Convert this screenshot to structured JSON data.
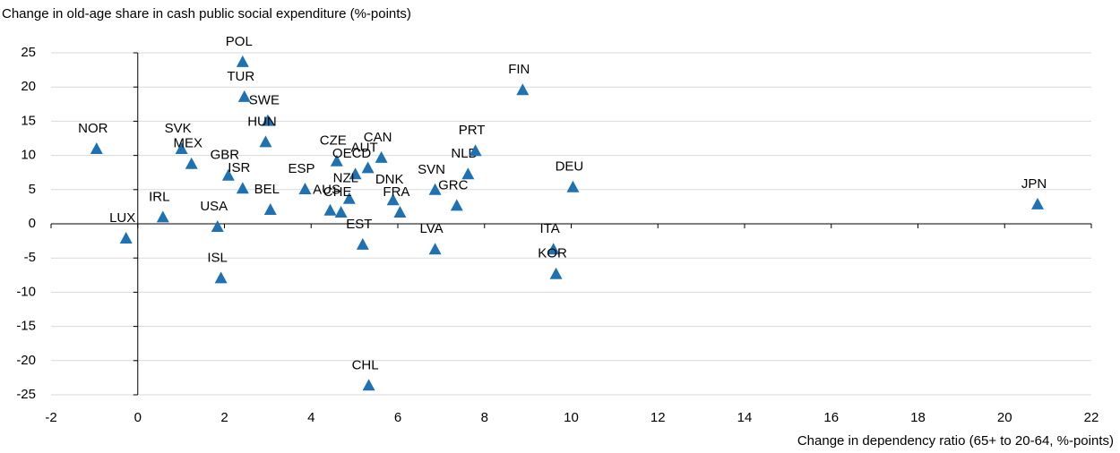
{
  "chart_data": {
    "type": "scatter",
    "title": "Change in old-age share in cash public social expenditure (%-points)",
    "x_label": "Change in dependency ratio (65+ to 20-64, %-points)",
    "labels": [
      "POL",
      "TUR",
      "SWE",
      "HUN",
      "FIN",
      "NOR",
      "SVK",
      "MEX",
      "GBR",
      "ISR",
      "BEL",
      "ESP",
      "CZE",
      "CAN",
      "AUT",
      "OECD",
      "NZL",
      "AUS",
      "CHE",
      "DNK",
      "FRA",
      "EST",
      "SVN",
      "GRC",
      "NLD",
      "PRT",
      "DEU",
      "JPN",
      "IRL",
      "LUX",
      "USA",
      "ISL",
      "LVA",
      "ITA",
      "KOR",
      "CHL"
    ],
    "x": [
      2.42,
      2.46,
      3.0,
      2.95,
      8.88,
      -0.95,
      1.01,
      1.24,
      2.09,
      2.42,
      3.06,
      3.86,
      4.59,
      5.62,
      5.31,
      5.02,
      4.88,
      4.44,
      4.69,
      5.89,
      6.05,
      5.19,
      6.86,
      7.36,
      7.62,
      7.79,
      10.04,
      20.76,
      0.58,
      -0.27,
      1.84,
      1.92,
      6.86,
      9.59,
      9.65,
      5.33
    ],
    "values": [
      23.7,
      18.6,
      15.1,
      12.0,
      19.6,
      11.0,
      11.0,
      8.8,
      7.1,
      5.2,
      2.1,
      5.1,
      9.2,
      9.7,
      8.2,
      7.3,
      3.7,
      2.0,
      1.7,
      3.5,
      1.7,
      -3.0,
      5.0,
      2.7,
      7.3,
      10.7,
      5.4,
      2.9,
      1.0,
      -2.1,
      -0.4,
      -7.9,
      -3.7,
      -3.7,
      -7.3,
      -23.6
    ],
    "color": "#1f72b2",
    "xlim": [
      -2,
      22
    ],
    "xticks": [
      -2,
      0,
      2,
      4,
      6,
      8,
      10,
      12,
      14,
      16,
      18,
      20,
      22
    ],
    "ylim": [
      -25,
      25
    ],
    "yticks": [
      -25,
      -20,
      -15,
      -10,
      -5,
      0,
      5,
      10,
      15,
      20,
      25
    ],
    "grid": true
  }
}
